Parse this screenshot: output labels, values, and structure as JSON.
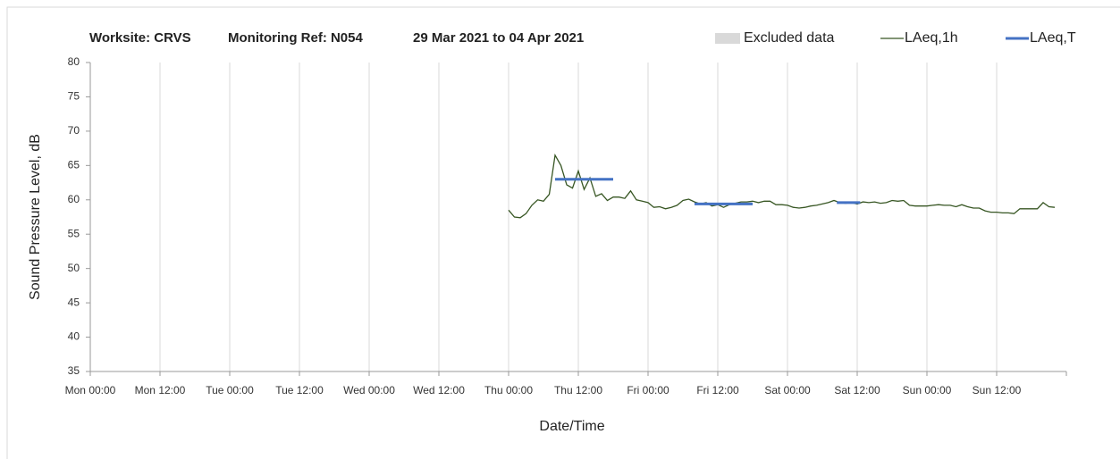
{
  "chart_data": {
    "type": "line",
    "title": [
      "Worksite: CRVS",
      "Monitoring Ref: N054",
      "29 Mar 2021 to 04 Apr 2021"
    ],
    "xlabel": "Date/Time",
    "ylabel": "Sound Pressure Level, dB",
    "xlim": [
      0,
      168
    ],
    "ylim": [
      35,
      80
    ],
    "xticks": [
      {
        "value": 0,
        "label": "Mon 00:00"
      },
      {
        "value": 12,
        "label": "Mon 12:00"
      },
      {
        "value": 24,
        "label": "Tue 00:00"
      },
      {
        "value": 36,
        "label": "Tue 12:00"
      },
      {
        "value": 48,
        "label": "Wed 00:00"
      },
      {
        "value": 60,
        "label": "Wed 12:00"
      },
      {
        "value": 72,
        "label": "Thu 00:00"
      },
      {
        "value": 84,
        "label": "Thu 12:00"
      },
      {
        "value": 96,
        "label": "Fri 00:00"
      },
      {
        "value": 108,
        "label": "Fri 12:00"
      },
      {
        "value": 120,
        "label": "Sat 00:00"
      },
      {
        "value": 132,
        "label": "Sat 12:00"
      },
      {
        "value": 144,
        "label": "Sun 00:00"
      },
      {
        "value": 156,
        "label": "Sun 12:00"
      }
    ],
    "yticks": [
      35,
      40,
      45,
      50,
      55,
      60,
      65,
      70,
      75,
      80
    ],
    "grid": "x",
    "series": [
      {
        "name": "Excluded data",
        "color": "#d9d9d9",
        "x": [],
        "values": []
      },
      {
        "name": "LAeq,1h",
        "color": "#375623",
        "x": [
          72,
          73,
          74,
          75,
          76,
          77,
          78,
          79,
          80,
          81,
          82,
          83,
          84,
          85,
          86,
          87,
          88,
          89,
          90,
          91,
          92,
          93,
          94,
          95,
          96,
          97,
          98,
          99,
          100,
          101,
          102,
          103,
          104,
          105,
          106,
          107,
          108,
          109,
          110,
          111,
          112,
          113,
          114,
          115,
          116,
          117,
          118,
          119,
          120,
          121,
          122,
          123,
          124,
          125,
          126,
          127,
          128,
          129,
          130,
          131,
          132,
          133,
          134,
          135,
          136,
          137,
          138,
          139,
          140,
          141,
          142,
          143,
          144,
          145,
          146,
          147,
          148,
          149,
          150,
          151,
          152,
          153,
          154,
          155,
          156,
          157,
          158,
          159,
          160,
          161,
          162,
          163,
          164,
          165,
          166
        ],
        "values": [
          58.5,
          57.5,
          57.4,
          58.0,
          59.2,
          60.0,
          59.8,
          60.8,
          66.5,
          65.0,
          62.2,
          61.7,
          64.2,
          61.5,
          63.2,
          60.5,
          60.9,
          59.9,
          60.4,
          60.4,
          60.2,
          61.3,
          60.0,
          59.8,
          59.6,
          58.9,
          59.0,
          58.7,
          58.9,
          59.2,
          59.9,
          60.1,
          59.7,
          59.4,
          59.6,
          59.1,
          59.3,
          58.9,
          59.3,
          59.5,
          59.7,
          59.7,
          59.8,
          59.6,
          59.8,
          59.8,
          59.3,
          59.3,
          59.2,
          58.9,
          58.8,
          58.9,
          59.1,
          59.2,
          59.4,
          59.6,
          59.9,
          59.6,
          59.5,
          59.6,
          59.4,
          59.7,
          59.6,
          59.7,
          59.5,
          59.6,
          59.9,
          59.8,
          59.9,
          59.2,
          59.1,
          59.1,
          59.1,
          59.2,
          59.3,
          59.2,
          59.2,
          59.0,
          59.3,
          59.0,
          58.8,
          58.8,
          58.4,
          58.2,
          58.2,
          58.1,
          58.1,
          58.0,
          58.7,
          58.7,
          58.7,
          58.7,
          59.6,
          59.0,
          58.9
        ]
      },
      {
        "name": "LAeq,T",
        "color": "#4472c4",
        "x": [
          80,
          90,
          90,
          104,
          114,
          114,
          128.5,
          132.5
        ],
        "values": [
          63.0,
          63.0,
          null,
          59.4,
          59.4,
          null,
          59.6,
          59.6
        ]
      }
    ]
  }
}
